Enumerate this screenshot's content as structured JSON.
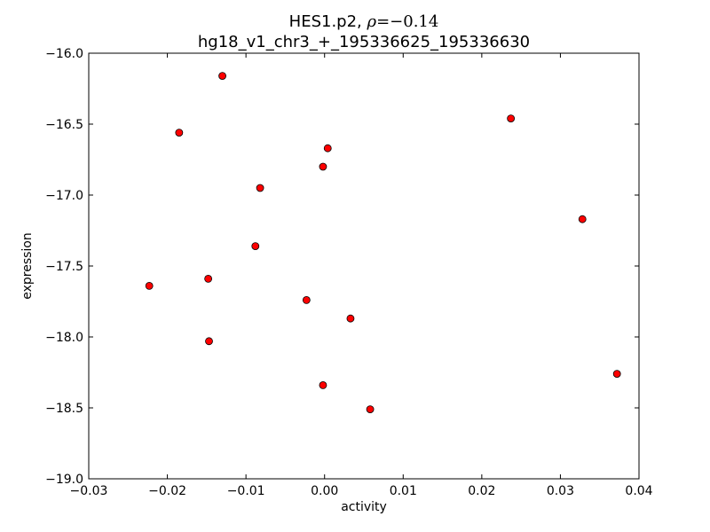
{
  "chart_data": {
    "type": "scatter",
    "title_prefix": "HES1.p2, ",
    "title_rho_symbol": "ρ",
    "title_rho_value": "=−0.14",
    "subtitle": "hg18_v1_chr3_+_195336625_195336630",
    "xlabel": "activity",
    "ylabel": "expression",
    "xlim": [
      -0.03,
      0.04
    ],
    "ylim": [
      -19.0,
      -16.0
    ],
    "xticks": [
      -0.03,
      -0.02,
      -0.01,
      0.0,
      0.01,
      0.02,
      0.03,
      0.04
    ],
    "xtick_labels": [
      "−0.03",
      "−0.02",
      "−0.01",
      "0.00",
      "0.01",
      "0.02",
      "0.03",
      "0.04"
    ],
    "yticks": [
      -16.0,
      -16.5,
      -17.0,
      -17.5,
      -18.0,
      -18.5,
      -19.0
    ],
    "ytick_labels": [
      "−16.0",
      "−16.5",
      "−17.0",
      "−17.5",
      "−18.0",
      "−18.5",
      "−19.0"
    ],
    "grid": false,
    "marker_color": "#ff0000",
    "marker_edge": "#000000",
    "points": [
      {
        "x": -0.013,
        "y": -16.16
      },
      {
        "x": -0.0185,
        "y": -16.56
      },
      {
        "x": 0.0237,
        "y": -16.46
      },
      {
        "x": 0.0004,
        "y": -16.67
      },
      {
        "x": -0.0002,
        "y": -16.8
      },
      {
        "x": -0.0082,
        "y": -16.95
      },
      {
        "x": 0.0328,
        "y": -17.17
      },
      {
        "x": -0.0088,
        "y": -17.36
      },
      {
        "x": -0.0223,
        "y": -17.64
      },
      {
        "x": -0.0148,
        "y": -17.59
      },
      {
        "x": -0.0023,
        "y": -17.74
      },
      {
        "x": 0.0033,
        "y": -17.87
      },
      {
        "x": -0.0147,
        "y": -18.03
      },
      {
        "x": 0.0372,
        "y": -18.26
      },
      {
        "x": -0.0002,
        "y": -18.34
      },
      {
        "x": 0.0058,
        "y": -18.51
      }
    ]
  }
}
